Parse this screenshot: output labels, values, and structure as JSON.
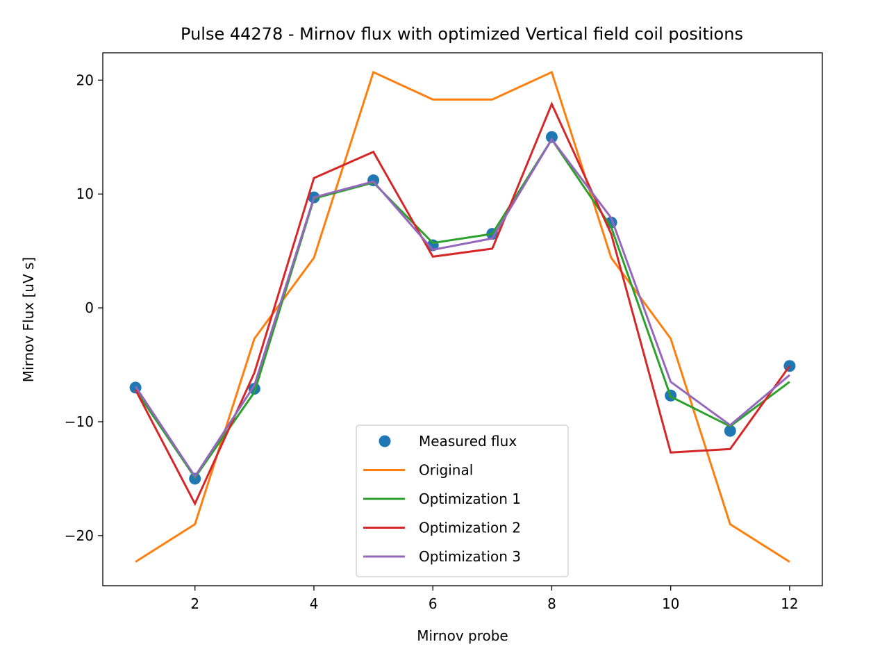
{
  "chart_data": {
    "type": "line",
    "title": "Pulse 44278 - Mirnov flux with optimized Vertical field coil positions",
    "xlabel": "Mirnov probe",
    "ylabel": "Mirnov Flux [uV s]",
    "xlim": [
      0.45,
      12.55
    ],
    "ylim": [
      -24.4,
      22.4
    ],
    "xticks": [
      2,
      4,
      6,
      8,
      10,
      12
    ],
    "yticks": [
      -20,
      -10,
      0,
      10,
      20
    ],
    "ytick_labels": [
      "−20",
      "−10",
      "0",
      "10",
      "20"
    ],
    "grid": false,
    "legend_position": "lower center",
    "x": [
      1,
      2,
      3,
      4,
      5,
      6,
      7,
      8,
      9,
      10,
      11,
      12
    ],
    "series": [
      {
        "name": "Measured flux",
        "style": "markers",
        "color": "#1f77b4",
        "values": [
          -7.0,
          -15.0,
          -7.1,
          9.7,
          11.2,
          5.5,
          6.5,
          15.0,
          7.5,
          -7.7,
          -10.8,
          -5.1
        ]
      },
      {
        "name": "Original",
        "style": "line",
        "color": "#ff7f0e",
        "values": [
          -22.3,
          -19.0,
          -2.7,
          4.4,
          20.7,
          18.3,
          18.3,
          20.7,
          4.4,
          -2.7,
          -19.0,
          -22.3
        ]
      },
      {
        "name": "Optimization 1",
        "style": "line",
        "color": "#2ca02c",
        "values": [
          -7.2,
          -14.9,
          -7.4,
          9.6,
          11.0,
          5.7,
          6.5,
          14.8,
          7.1,
          -7.8,
          -10.4,
          -6.5
        ]
      },
      {
        "name": "Optimization 2",
        "style": "line",
        "color": "#d62728",
        "values": [
          -7.2,
          -17.2,
          -5.7,
          11.4,
          13.7,
          4.5,
          5.2,
          17.9,
          6.5,
          -12.7,
          -12.4,
          -5.1
        ]
      },
      {
        "name": "Optimization 3",
        "style": "line",
        "color": "#9467bd",
        "values": [
          -6.9,
          -14.8,
          -6.8,
          9.7,
          11.1,
          5.1,
          6.1,
          14.8,
          7.9,
          -6.5,
          -10.3,
          -5.9
        ]
      }
    ]
  }
}
